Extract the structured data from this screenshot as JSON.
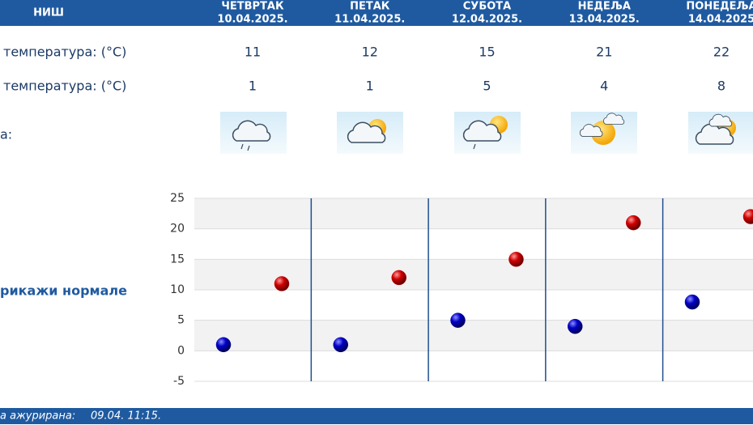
{
  "header": {
    "city": "НИШ",
    "days": [
      {
        "name": "ЧЕТВРТАК",
        "date": "10.04.2025."
      },
      {
        "name": "ПЕТАК",
        "date": "11.04.2025."
      },
      {
        "name": "СУБОТА",
        "date": "12.04.2025."
      },
      {
        "name": "НЕДЕЉА",
        "date": "13.04.2025."
      },
      {
        "name": "ПОНЕДЕЉА",
        "date": "14.04.2025"
      }
    ]
  },
  "forecast": {
    "max": {
      "label": "температура: (°C)",
      "values": [
        11,
        12,
        15,
        21,
        22
      ],
      "color": "#c00000"
    },
    "min": {
      "label": "температура: (°C)",
      "values": [
        1,
        1,
        5,
        4,
        8
      ],
      "color": "#0000b0"
    },
    "icons_label": "а:"
  },
  "normals_link": "рикажи нормале",
  "chart": {
    "ylim": [
      -5,
      25
    ],
    "yticks": [
      -5,
      0,
      5,
      10,
      15,
      20,
      25
    ]
  },
  "footer": {
    "label": "а ажурирана:",
    "value": "09.04.  11:15."
  }
}
